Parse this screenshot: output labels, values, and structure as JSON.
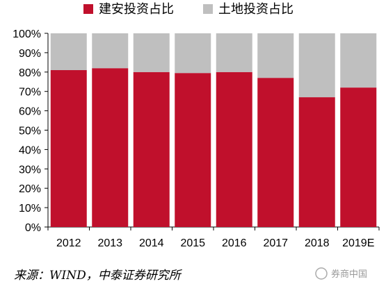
{
  "chart_data": {
    "type": "bar",
    "stacked": true,
    "percent_stacked": true,
    "categories": [
      "2012",
      "2013",
      "2014",
      "2015",
      "2016",
      "2017",
      "2018",
      "2019E"
    ],
    "series": [
      {
        "name": "建安投资占比",
        "values": [
          81,
          82,
          80,
          79.5,
          80,
          77,
          67,
          72
        ],
        "color": "#c0102c"
      },
      {
        "name": "土地投资占比",
        "values": [
          19,
          18,
          20,
          20.5,
          20,
          23,
          33,
          28
        ],
        "color": "#bfbfbf"
      }
    ],
    "yticks": [
      "0%",
      "10%",
      "20%",
      "30%",
      "40%",
      "50%",
      "60%",
      "70%",
      "80%",
      "90%",
      "100%"
    ],
    "ylim": [
      0,
      100
    ],
    "legend_position": "top",
    "grid": false
  },
  "source": "来源：WIND，中泰证券研究所",
  "watermark": "券商中国"
}
